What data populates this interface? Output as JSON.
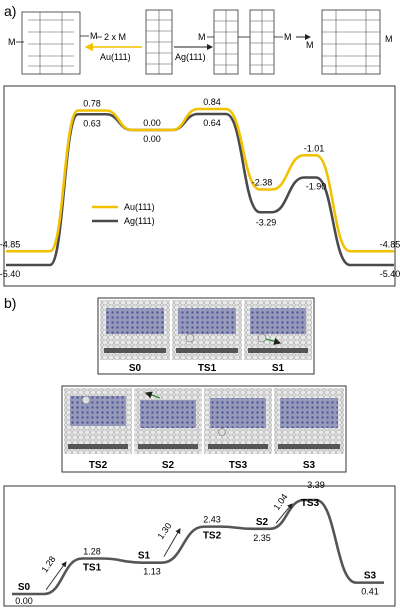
{
  "panel_a": {
    "label": "a)",
    "scheme": {
      "M": "M",
      "two_x_m": "2 x M",
      "au_label": "Au(111)",
      "ag_label": "Ag(111)"
    },
    "chart_data": {
      "type": "line",
      "series": [
        {
          "name": "Au(111)",
          "color": "#f2c200",
          "labels": [
            "-4.85",
            "0.78",
            "0.00",
            "0.84",
            "-2.38",
            "-1.01",
            "-4.85"
          ],
          "values": [
            -4.85,
            0.78,
            0.0,
            0.84,
            -2.38,
            -1.01,
            -4.85
          ]
        },
        {
          "name": "Ag(111)",
          "color": "#4a4a4a",
          "labels": [
            "-5.40",
            "0.63",
            "0.00",
            "0.64",
            "-3.29",
            "-1.90",
            "-5.40"
          ],
          "values": [
            -5.4,
            0.63,
            0.0,
            0.64,
            -3.29,
            -1.9,
            -5.4
          ]
        }
      ],
      "legend": "center-left"
    }
  },
  "panel_b": {
    "label": "b)",
    "image_row1": [
      "S0",
      "TS1",
      "S1"
    ],
    "image_row2": [
      "TS2",
      "S2",
      "TS3",
      "S3"
    ],
    "chart_data": {
      "type": "line",
      "states": [
        {
          "name": "S0",
          "value": 0.0,
          "label": "0.00"
        },
        {
          "name": "TS1",
          "value": 1.28,
          "label": "1.28"
        },
        {
          "name": "S1",
          "value": 1.13,
          "label": "1.13"
        },
        {
          "name": "TS2",
          "value": 2.43,
          "label": "2.43"
        },
        {
          "name": "S2",
          "value": 2.35,
          "label": "2.35"
        },
        {
          "name": "TS3",
          "value": 3.39,
          "label": "3.39"
        },
        {
          "name": "S3",
          "value": 0.41,
          "label": "0.41"
        }
      ],
      "arrows": [
        {
          "label": "1.28"
        },
        {
          "label": "1.30"
        },
        {
          "label": "1.04"
        }
      ],
      "color": "#555555"
    }
  }
}
